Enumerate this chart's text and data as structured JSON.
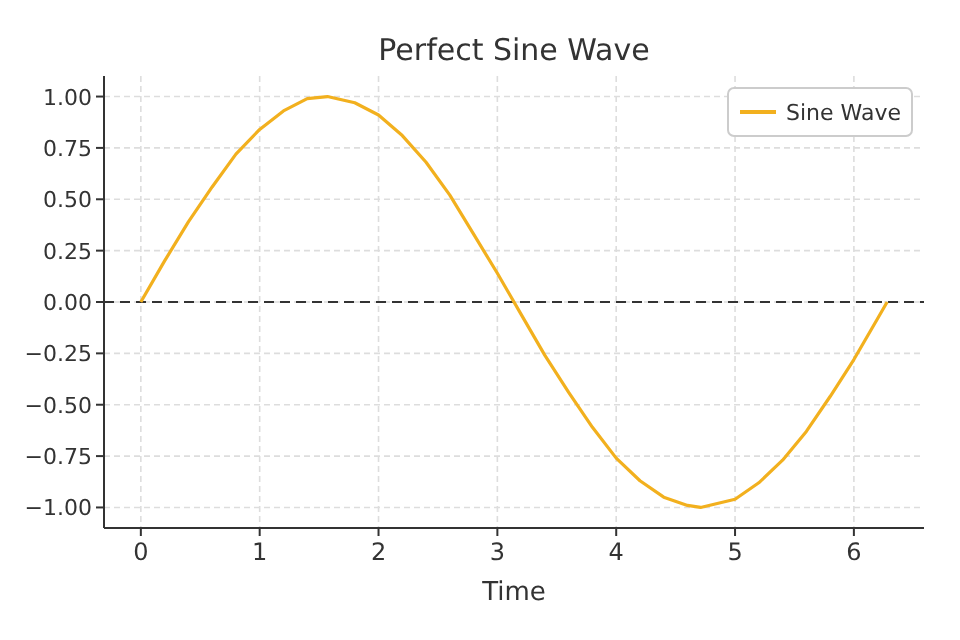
{
  "chart_data": {
    "type": "line",
    "title": "Perfect Sine Wave",
    "xlabel": "Time",
    "x": [
      0,
      0.2,
      0.4,
      0.6,
      0.8,
      1.0,
      1.2,
      1.4,
      1.57,
      1.8,
      2.0,
      2.2,
      2.4,
      2.6,
      2.8,
      3.0,
      3.2,
      3.4,
      3.6,
      3.8,
      4.0,
      4.2,
      4.4,
      4.6,
      4.71,
      5.0,
      5.2,
      5.4,
      5.6,
      5.8,
      6.0,
      6.2,
      6.28
    ],
    "series": [
      {
        "name": "Sine Wave",
        "color": "#f2b01e",
        "values": [
          0,
          0.2,
          0.39,
          0.56,
          0.72,
          0.84,
          0.93,
          0.99,
          1.0,
          0.97,
          0.91,
          0.81,
          0.68,
          0.52,
          0.33,
          0.14,
          -0.06,
          -0.26,
          -0.44,
          -0.61,
          -0.76,
          -0.87,
          -0.95,
          -0.99,
          -1.0,
          -0.96,
          -0.88,
          -0.77,
          -0.63,
          -0.46,
          -0.28,
          -0.08,
          0
        ]
      }
    ],
    "xlim": [
      -0.31,
      6.59
    ],
    "xticks": [
      0,
      1,
      2,
      3,
      4,
      5,
      6
    ],
    "ylim": [
      -1.1,
      1.1
    ],
    "yticks": [
      {
        "value": -1,
        "label": "−1.00"
      },
      {
        "value": -0.75,
        "label": "−0.75"
      },
      {
        "value": -0.5,
        "label": "−0.50"
      },
      {
        "value": -0.25,
        "label": "−0.25"
      },
      {
        "value": 0,
        "label": "0.00"
      },
      {
        "value": 0.25,
        "label": "0.25"
      },
      {
        "value": 0.5,
        "label": "0.50"
      },
      {
        "value": 0.75,
        "label": "0.75"
      },
      {
        "value": 1,
        "label": "1.00"
      }
    ],
    "ref_lines": [
      {
        "axis": "y",
        "value": 0,
        "color": "#333333",
        "line_style": "dashed"
      }
    ],
    "grid": true,
    "legend": "top right",
    "line_style": "solid",
    "marker": "none"
  }
}
